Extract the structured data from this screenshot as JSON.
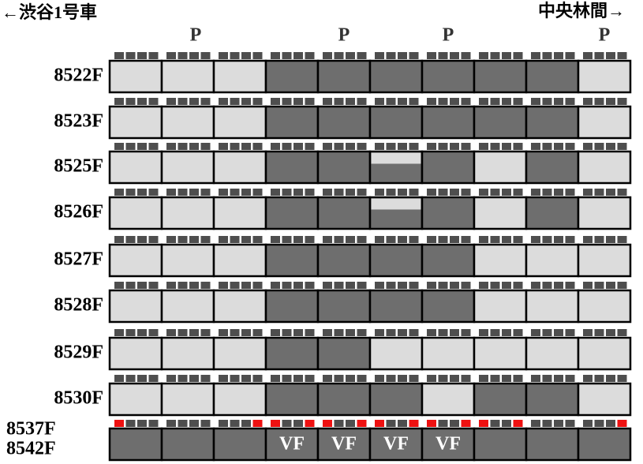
{
  "header": {
    "left": "←渋谷1号車",
    "right": "中央林間→"
  },
  "pantographs": [
    "P",
    "P",
    "P",
    "P"
  ],
  "colors": {
    "light": "#dcdcdc",
    "dark": "#6e6e6e",
    "roof": "#4e4e4e",
    "marker": "#ee1111",
    "border": "#000000"
  },
  "rows": [
    {
      "names": [
        "8522F"
      ],
      "cars": [
        "light",
        "light",
        "light",
        "dark",
        "dark",
        "dark",
        "dark",
        "dark",
        "dark",
        "light"
      ]
    },
    {
      "names": [
        "8523F"
      ],
      "cars": [
        "light",
        "light",
        "light",
        "dark",
        "dark",
        "dark",
        "dark",
        "dark",
        "dark",
        "light"
      ]
    },
    {
      "names": [
        "8525F"
      ],
      "cars": [
        "light",
        "light",
        "light",
        "dark",
        "dark",
        "split",
        "dark",
        "light",
        "dark",
        "light"
      ]
    },
    {
      "names": [
        "8526F"
      ],
      "cars": [
        "light",
        "light",
        "light",
        "dark",
        "dark",
        "split",
        "dark",
        "light",
        "dark",
        "light"
      ]
    },
    {
      "names": [
        "8527F"
      ],
      "cars": [
        "light",
        "light",
        "light",
        "dark",
        "dark",
        "dark",
        "dark",
        "light",
        "light",
        "light"
      ]
    },
    {
      "names": [
        "8528F"
      ],
      "cars": [
        "light",
        "light",
        "light",
        "dark",
        "dark",
        "dark",
        "dark",
        "light",
        "light",
        "light"
      ]
    },
    {
      "names": [
        "8529F"
      ],
      "cars": [
        "light",
        "light",
        "light",
        "dark",
        "dark",
        "light",
        "light",
        "light",
        "light",
        "light"
      ]
    },
    {
      "names": [
        "8530F"
      ],
      "cars": [
        "light",
        "light",
        "light",
        "dark",
        "dark",
        "dark",
        "light",
        "dark",
        "dark",
        "light"
      ]
    },
    {
      "names": [
        "8537F",
        "8542F"
      ],
      "cars": [
        "dark",
        "dark",
        "dark",
        "dark",
        "dark",
        "dark",
        "dark",
        "dark",
        "dark",
        "dark"
      ],
      "car_labels": [
        null,
        null,
        null,
        "VF",
        "VF",
        "VF",
        "VF",
        null,
        null,
        null
      ]
    }
  ]
}
